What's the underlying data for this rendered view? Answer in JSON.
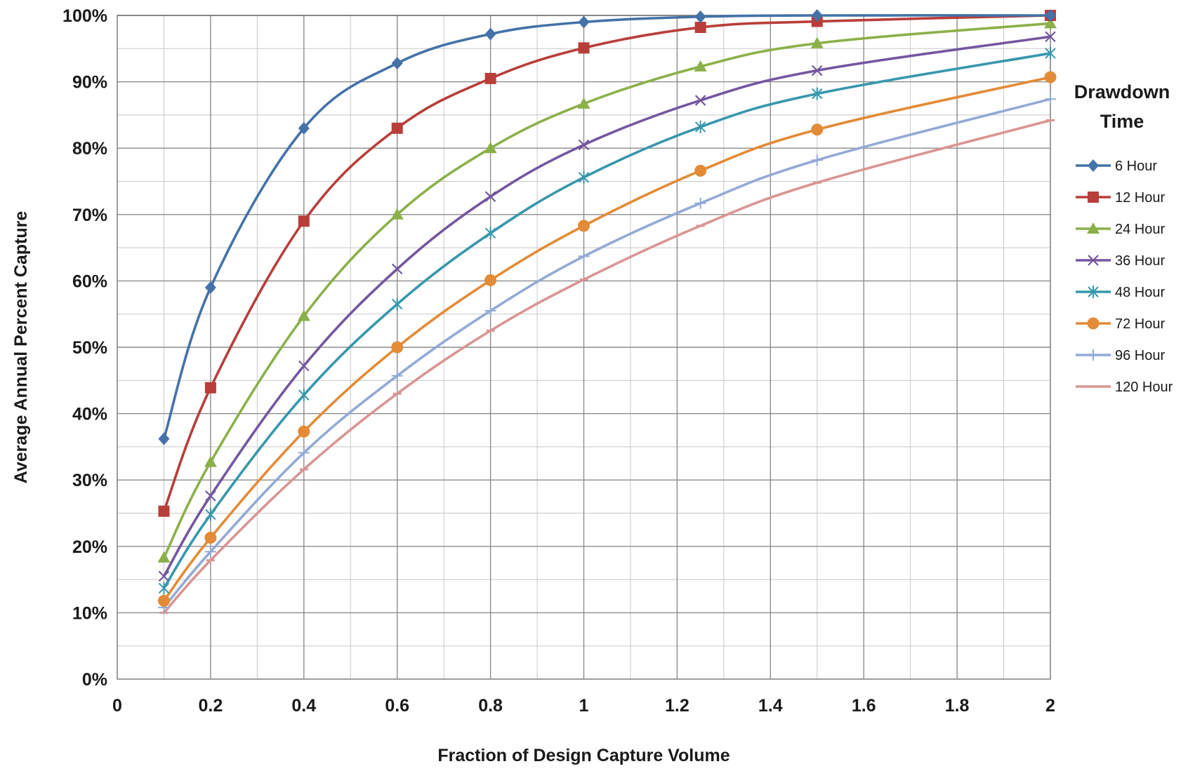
{
  "chart_data": {
    "type": "line",
    "title": "",
    "xlabel": "Fraction of Design Capture Volume",
    "ylabel": "Average Annual Percent Capture",
    "xlim": [
      0,
      2
    ],
    "ylim": [
      0,
      100
    ],
    "x_major_ticks": [
      0,
      0.2,
      0.4,
      0.6,
      0.8,
      1,
      1.2,
      1.4,
      1.6,
      1.8,
      2
    ],
    "x_tick_labels": [
      "0",
      "0.2",
      "0.4",
      "0.6",
      "0.8",
      "1",
      "1.2",
      "1.4",
      "1.6",
      "1.8",
      "2"
    ],
    "y_major_ticks": [
      0,
      10,
      20,
      30,
      40,
      50,
      60,
      70,
      80,
      90,
      100
    ],
    "y_tick_labels": [
      "0%",
      "10%",
      "20%",
      "30%",
      "40%",
      "50%",
      "60%",
      "70%",
      "80%",
      "90%",
      "100%"
    ],
    "x_minor_step": 0.1,
    "y_minor_step": 5,
    "grid": true,
    "legend": {
      "title_lines": [
        "Drawdown",
        "Time"
      ],
      "placement": "right"
    },
    "x": [
      0.1,
      0.2,
      0.4,
      0.6,
      0.8,
      1,
      1.25,
      1.5,
      2
    ],
    "series": [
      {
        "name": "6 Hour",
        "color": "#4472A8",
        "marker": "diamond",
        "values": [
          36.2,
          59,
          83,
          92.8,
          97.2,
          99,
          99.8,
          100,
          100
        ]
      },
      {
        "name": "12 Hour",
        "color": "#B83E3A",
        "marker": "square",
        "values": [
          25.3,
          43.9,
          69,
          83,
          90.5,
          95.1,
          98.2,
          99.1,
          100
        ]
      },
      {
        "name": "24 Hour",
        "color": "#8BB04A",
        "marker": "triangle",
        "values": [
          18.3,
          32.7,
          54.7,
          70,
          80,
          86.7,
          92.3,
          95.8,
          98.8
        ]
      },
      {
        "name": "36 Hour",
        "color": "#7556A0",
        "marker": "x",
        "values": [
          15.5,
          27.6,
          47.2,
          61.8,
          72.7,
          80.5,
          87.2,
          91.7,
          96.8
        ]
      },
      {
        "name": "48 Hour",
        "color": "#3797AC",
        "marker": "asterisk",
        "values": [
          13.7,
          24.8,
          42.8,
          56.5,
          67.2,
          75.6,
          83.2,
          88.2,
          94.3
        ]
      },
      {
        "name": "72 Hour",
        "color": "#E38B36",
        "marker": "circle",
        "values": [
          11.8,
          21.3,
          37.3,
          50,
          60.1,
          68.3,
          76.6,
          82.8,
          90.7
        ]
      },
      {
        "name": "96 Hour",
        "color": "#93AAD6",
        "marker": "plus",
        "values": [
          10.8,
          19.2,
          34.1,
          45.7,
          55.5,
          63.7,
          71.7,
          78.2,
          87.4
        ]
      },
      {
        "name": "120 Hour",
        "color": "#D99593",
        "marker": "dash",
        "values": [
          10,
          17.9,
          31.6,
          43,
          52.5,
          60.2,
          68.3,
          74.8,
          84.2
        ]
      }
    ]
  }
}
